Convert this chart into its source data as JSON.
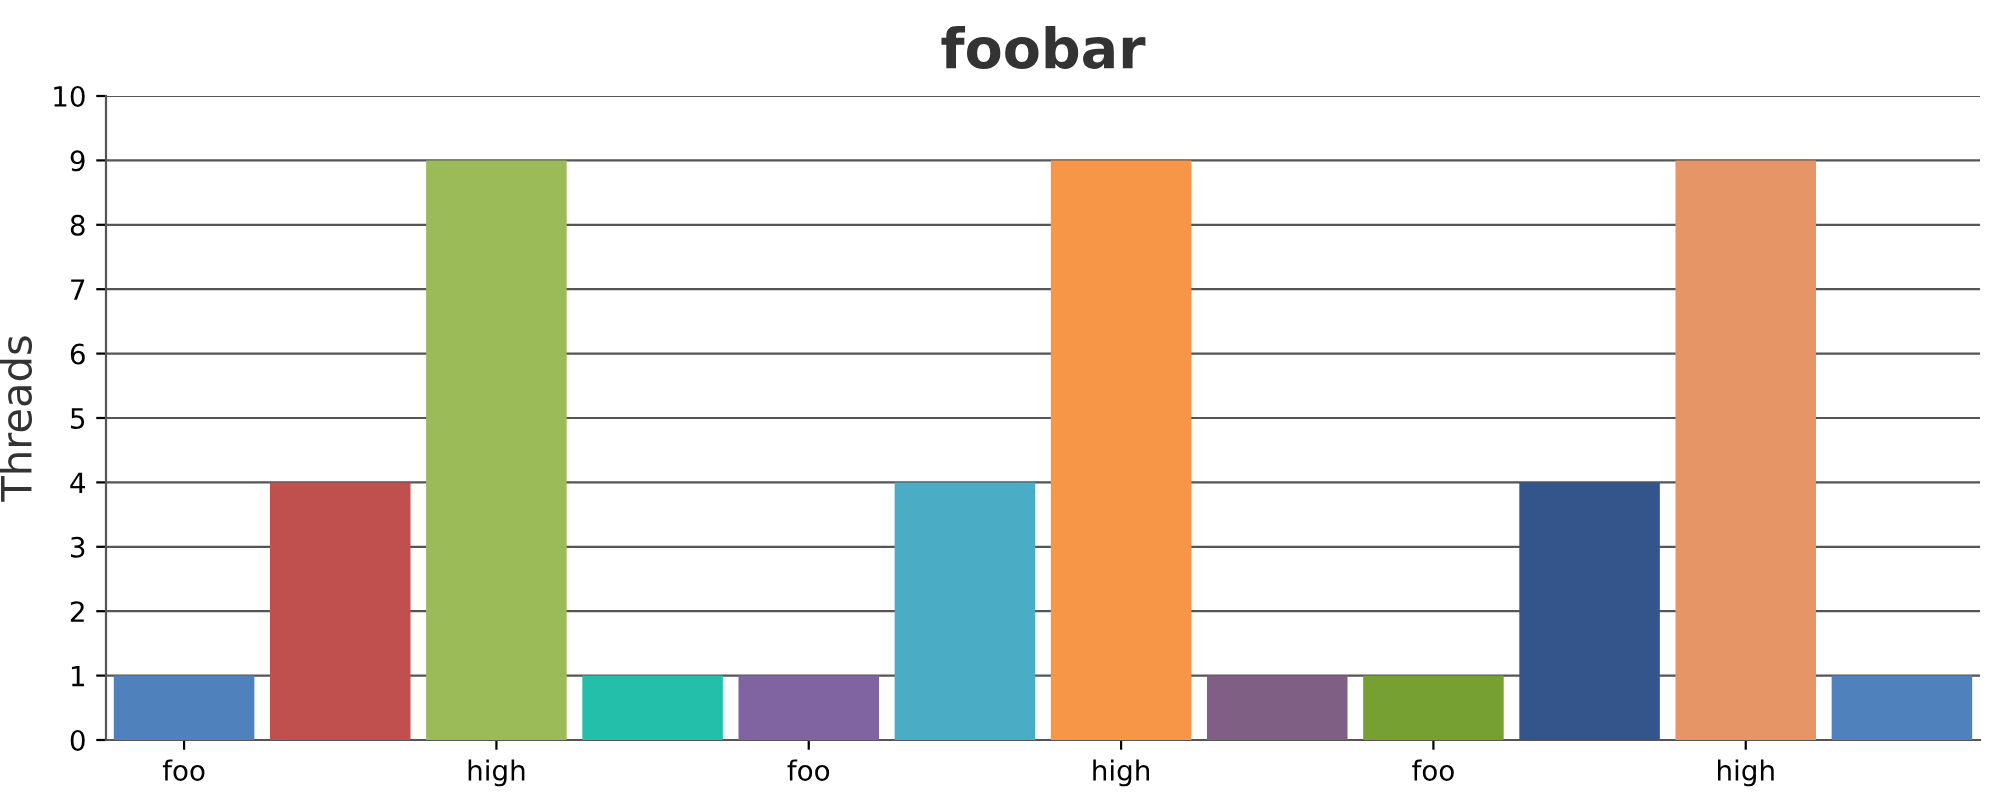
{
  "chart_data": {
    "type": "bar",
    "title": "foobar",
    "ylabel": "Threads",
    "categories": [
      "foo",
      null,
      "high",
      null,
      "foo",
      null,
      "high",
      null,
      "foo",
      null,
      "high",
      null
    ],
    "values": [
      1,
      4,
      9,
      1,
      1,
      4,
      9,
      1,
      1,
      4,
      9,
      1
    ],
    "colors": [
      "#4f81bc",
      "#c0504e",
      "#9bbb58",
      "#23bfaa",
      "#8064a1",
      "#4aacc5",
      "#f79647",
      "#7f6084",
      "#77a033",
      "#33558b",
      "#e59566",
      "#4f81bc"
    ],
    "ylim": [
      0,
      10
    ],
    "yticks": [
      0,
      1,
      2,
      3,
      4,
      5,
      6,
      7,
      8,
      9,
      10
    ],
    "grid": "y",
    "legend": false
  }
}
